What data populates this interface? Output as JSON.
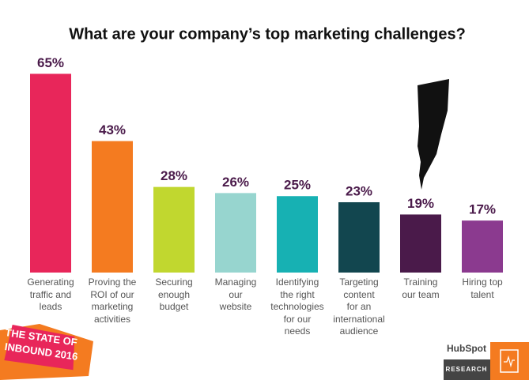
{
  "chart_data": {
    "type": "bar",
    "title": "What are your company’s top marketing challenges?",
    "categories": [
      "Generating\ntraffic and\nleads",
      "Proving the\nROI of our\nmarketing\nactivities",
      "Securing\nenough\nbudget",
      "Managing\nour\nwebsite",
      "Identifying\nthe right\ntechnologies\nfor our\nneeds",
      "Targeting\ncontent\nfor an\ninternational\naudience",
      "Training\nour team",
      "Hiring top\ntalent"
    ],
    "values": [
      65,
      43,
      28,
      26,
      25,
      23,
      19,
      17
    ],
    "value_labels": [
      "65%",
      "43%",
      "28%",
      "26%",
      "25%",
      "23%",
      "19%",
      "17%"
    ],
    "colors": [
      "#e8265a",
      "#f47b20",
      "#c1d72f",
      "#97d5cf",
      "#17b1b3",
      "#12464f",
      "#4a1a4a",
      "#8b3a8f"
    ]
  },
  "footer": {
    "badge": [
      "THE STATE OF",
      "INBOUND 2016"
    ],
    "logo": "HubSpot",
    "label": "RESEARCH"
  }
}
